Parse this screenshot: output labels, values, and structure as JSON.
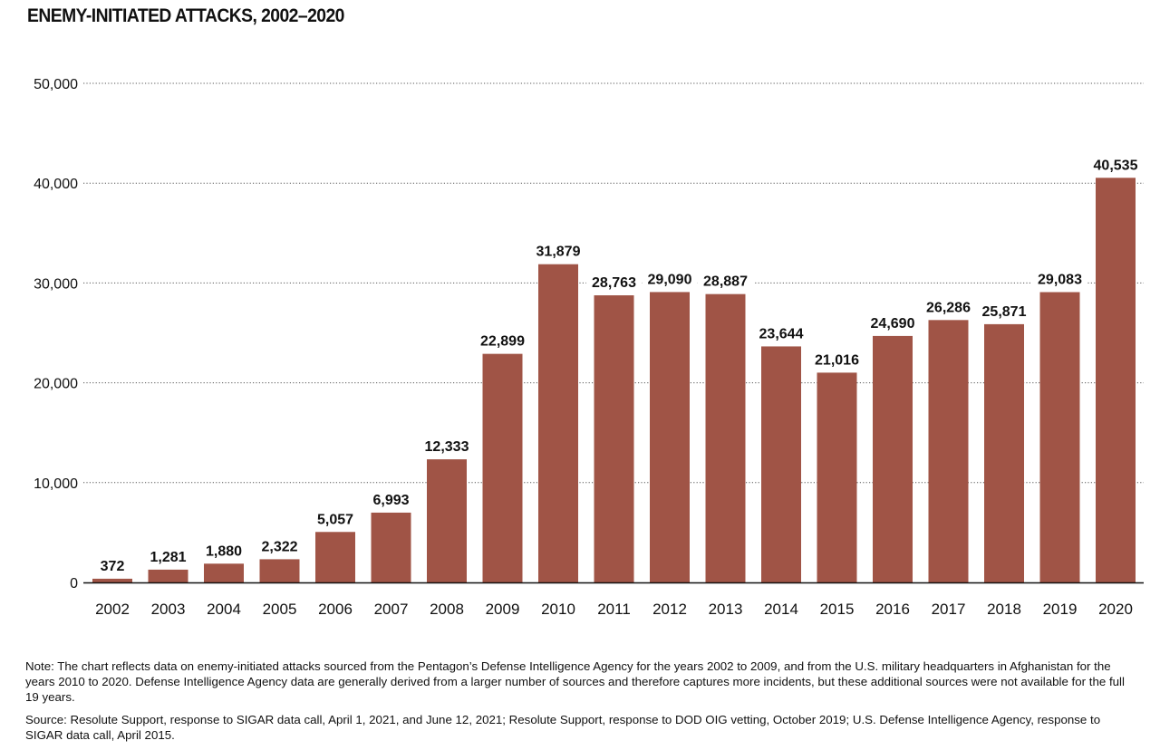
{
  "chart_data": {
    "type": "bar",
    "title": "ENEMY-INITIATED ATTACKS, 2002–2020",
    "xlabel": "",
    "ylabel": "",
    "categories": [
      "2002",
      "2003",
      "2004",
      "2005",
      "2006",
      "2007",
      "2008",
      "2009",
      "2010",
      "2011",
      "2012",
      "2013",
      "2014",
      "2015",
      "2016",
      "2017",
      "2018",
      "2019",
      "2020"
    ],
    "values": [
      372,
      1281,
      1880,
      2322,
      5057,
      6993,
      12333,
      22899,
      31879,
      28763,
      29090,
      28887,
      23644,
      21016,
      24690,
      26286,
      25871,
      29083,
      40535
    ],
    "value_labels": [
      "372",
      "1,281",
      "1,880",
      "2,322",
      "5,057",
      "6,993",
      "12,333",
      "22,899",
      "31,879",
      "28,763",
      "29,090",
      "28,887",
      "23,644",
      "21,016",
      "24,690",
      "26,286",
      "25,871",
      "29,083",
      "40,535"
    ],
    "ylim": [
      0,
      50000
    ],
    "yticks": [
      0,
      10000,
      20000,
      30000,
      40000,
      50000
    ],
    "ytick_labels": [
      "0",
      "10,000",
      "20,000",
      "30,000",
      "40,000",
      "50,000"
    ],
    "grid": "dotted horizontal",
    "bar_color": "#a05446"
  },
  "notes": {
    "note": "Note: The chart reflects data on enemy-initiated attacks sourced from the Pentagon’s Defense Intelligence Agency for the years 2002 to 2009, and from the U.S. military headquarters in Afghanistan for the years 2010 to 2020. Defense Intelligence Agency data are generally derived from a larger number of sources and therefore captures more incidents, but these additional sources were not available for the full 19 years.",
    "source": "Source: Resolute Support, response to SIGAR data call, April 1, 2021, and June 12, 2021; Resolute Support, response to DOD OIG vetting, October 2019; U.S. Defense Intelligence Agency, response to SIGAR data call, April 2015."
  }
}
